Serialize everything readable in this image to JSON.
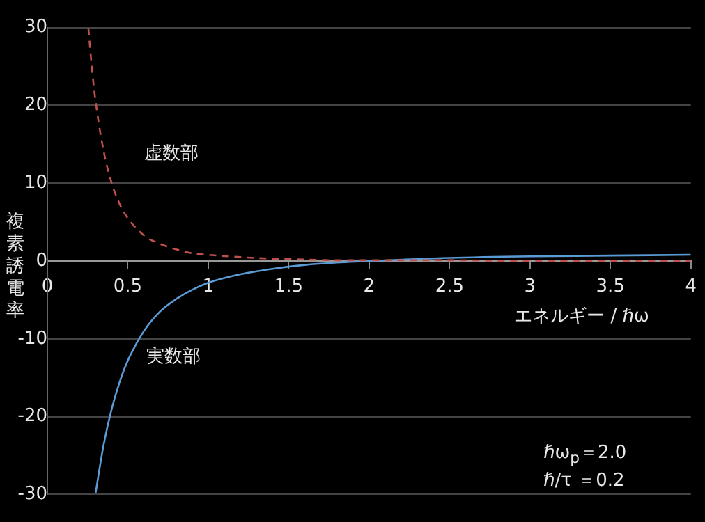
{
  "chart_data": {
    "type": "line",
    "ylabel": "複素誘電率",
    "xlabel": "エネルギー / ℏω",
    "xlim": [
      0,
      4
    ],
    "xticks": [
      0,
      0.5,
      1,
      1.5,
      2,
      2.5,
      3,
      3.5,
      4
    ],
    "ylim": [
      -30,
      30
    ],
    "yticks": [
      -30,
      -20,
      -10,
      0,
      10,
      20,
      30
    ],
    "grid": "y",
    "legend": false,
    "marker": "none",
    "annotations": [
      "ℏω$_{p}$＝2.0",
      "ℏ/τ ＝0.2"
    ],
    "series": [
      {
        "name": "虚数部",
        "color": "#c0504d",
        "line_style": "dashed",
        "x": [
          0.255,
          0.28,
          0.3,
          0.35,
          0.4,
          0.45,
          0.5,
          0.6,
          0.7,
          0.8,
          0.9,
          1,
          1.2,
          1.4,
          1.6,
          1.8,
          2,
          2.5,
          3,
          3.5,
          4
        ],
        "values": [
          29.9,
          24.1,
          20.5,
          14.1,
          10.0,
          7.3,
          5.5,
          3.3,
          2.2,
          1.5,
          1.0,
          0.8,
          0.5,
          0.3,
          0.2,
          0.1,
          0.1,
          0.1,
          0.0,
          0.0,
          0.0
        ]
      },
      {
        "name": "実数部",
        "color": "#5b9bd5",
        "line_style": "solid",
        "x": [
          0.3,
          0.35,
          0.4,
          0.45,
          0.5,
          0.6,
          0.7,
          0.8,
          0.9,
          1,
          1.2,
          1.4,
          1.6,
          1.8,
          2,
          2.5,
          3,
          3.5,
          4
        ],
        "values": [
          -29.8,
          -23.6,
          -19.0,
          -15.5,
          -12.8,
          -9.0,
          -6.5,
          -4.9,
          -3.7,
          -2.8,
          -1.7,
          -1.0,
          -0.5,
          -0.2,
          0.0,
          0.4,
          0.6,
          0.7,
          0.8
        ]
      }
    ]
  }
}
